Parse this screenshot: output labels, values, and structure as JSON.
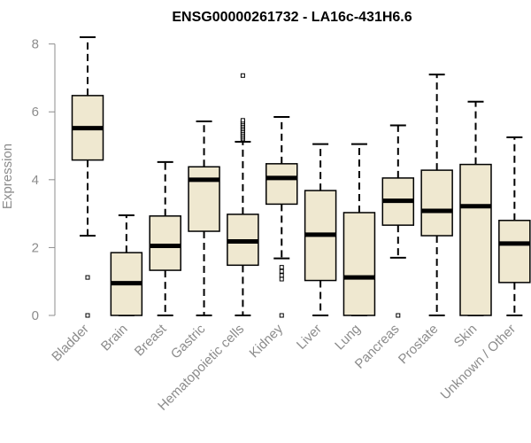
{
  "chart_data": {
    "type": "boxplot",
    "title": "ENSG00000261732 - LA16c-431H6.6",
    "xlabel": "",
    "ylabel": "Expression",
    "ylim": [
      0,
      8.2
    ],
    "yticks": [
      0,
      2,
      4,
      6,
      8
    ],
    "box_color": "#efe8d0",
    "categories": [
      "Bladder",
      "Brain",
      "Breast",
      "Gastric",
      "Hematopoietic cells",
      "Kidney",
      "Liver",
      "Lung",
      "Pancreas",
      "Prostate",
      "Skin",
      "Unknown / Other"
    ],
    "boxes": [
      {
        "min": 2.35,
        "q1": 4.58,
        "median": 5.52,
        "q3": 6.48,
        "max": 8.2,
        "outliers": [
          1.12,
          0.0
        ]
      },
      {
        "min": 0.0,
        "q1": 0.0,
        "median": 0.95,
        "q3": 1.85,
        "max": 2.95,
        "outliers": []
      },
      {
        "min": 0.0,
        "q1": 1.33,
        "median": 2.05,
        "q3": 2.93,
        "max": 4.52,
        "outliers": []
      },
      {
        "min": 0.0,
        "q1": 2.48,
        "median": 4.0,
        "q3": 4.38,
        "max": 5.72,
        "outliers": []
      },
      {
        "min": 0.0,
        "q1": 1.48,
        "median": 2.18,
        "q3": 2.98,
        "max": 5.12,
        "outliers": [
          5.2,
          5.25,
          5.3,
          5.35,
          5.4,
          5.45,
          5.5,
          5.55,
          5.6,
          5.65,
          5.7,
          5.75,
          7.07
        ]
      },
      {
        "min": 1.68,
        "q1": 3.28,
        "median": 4.05,
        "q3": 4.47,
        "max": 5.85,
        "outliers": [
          1.42,
          1.3,
          1.18,
          1.07,
          0.0
        ]
      },
      {
        "min": 0.0,
        "q1": 1.03,
        "median": 2.38,
        "q3": 3.68,
        "max": 5.05,
        "outliers": []
      },
      {
        "min": 0.0,
        "q1": 0.0,
        "median": 1.12,
        "q3": 3.03,
        "max": 5.05,
        "outliers": []
      },
      {
        "min": 1.7,
        "q1": 2.66,
        "median": 3.38,
        "q3": 4.05,
        "max": 5.6,
        "outliers": [
          0.0
        ]
      },
      {
        "min": 0.0,
        "q1": 2.35,
        "median": 3.08,
        "q3": 4.28,
        "max": 7.1,
        "outliers": []
      },
      {
        "min": 0.0,
        "q1": 0.0,
        "median": 3.22,
        "q3": 4.45,
        "max": 6.3,
        "outliers": []
      },
      {
        "min": 0.0,
        "q1": 0.97,
        "median": 2.12,
        "q3": 2.8,
        "max": 5.25,
        "outliers": []
      }
    ]
  }
}
